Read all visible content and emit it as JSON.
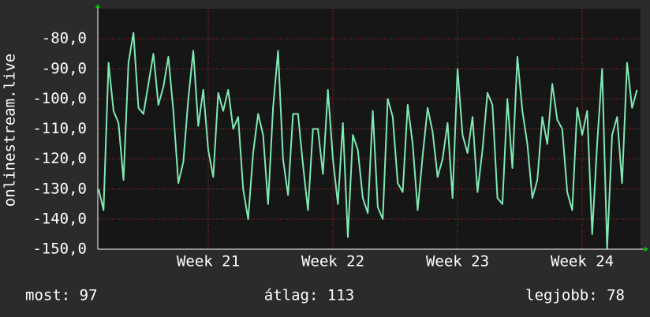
{
  "chart_data": {
    "type": "line",
    "ylabel": "onlinestream.live",
    "x": [
      20.12,
      20.16,
      20.2,
      20.24,
      20.28,
      20.32,
      20.36,
      20.4,
      20.44,
      20.48,
      20.52,
      20.56,
      20.6,
      20.64,
      20.68,
      20.72,
      20.76,
      20.8,
      20.84,
      20.88,
      20.92,
      20.96,
      21,
      21.04,
      21.08,
      21.12,
      21.16,
      21.2,
      21.24,
      21.28,
      21.32,
      21.36,
      21.4,
      21.44,
      21.48,
      21.52,
      21.56,
      21.6,
      21.64,
      21.68,
      21.72,
      21.76,
      21.8,
      21.84,
      21.88,
      21.92,
      21.96,
      22,
      22.04,
      22.08,
      22.12,
      22.16,
      22.2,
      22.24,
      22.28,
      22.32,
      22.36,
      22.4,
      22.44,
      22.48,
      22.52,
      22.56,
      22.6,
      22.64,
      22.68,
      22.72,
      22.76,
      22.8,
      22.84,
      22.88,
      22.92,
      22.96,
      23,
      23.04,
      23.08,
      23.12,
      23.16,
      23.2,
      23.24,
      23.28,
      23.32,
      23.36,
      23.4,
      23.44,
      23.48,
      23.52,
      23.56,
      23.6,
      23.64,
      23.68,
      23.72,
      23.76,
      23.8,
      23.84,
      23.88,
      23.92,
      23.96,
      24,
      24.04,
      24.08,
      24.12,
      24.16,
      24.2,
      24.24,
      24.28,
      24.32,
      24.36,
      24.4,
      24.44
    ],
    "series": [
      {
        "color": "#7fe8b4",
        "values": [
          -130,
          -137,
          -88,
          -104,
          -108,
          -127,
          -88,
          -78,
          -103,
          -105,
          -95,
          -85,
          -102,
          -96,
          -86,
          -104,
          -128,
          -121,
          -100,
          -84,
          -109,
          -97,
          -117,
          -126,
          -98,
          -104,
          -97,
          -110,
          -106,
          -130,
          -140,
          -118,
          -105,
          -112,
          -135,
          -103,
          -84,
          -120,
          -132,
          -105,
          -105,
          -122,
          -137,
          -110,
          -110,
          -125,
          -97,
          -120,
          -135,
          -108,
          -146,
          -112,
          -117,
          -133,
          -138,
          -104,
          -136,
          -140,
          -100,
          -106,
          -128,
          -131,
          -102,
          -115,
          -137,
          -119,
          -103,
          -111,
          -126,
          -120,
          -108,
          -133,
          -90,
          -112,
          -118,
          -106,
          -131,
          -117,
          -98,
          -102,
          -133,
          -135,
          -100,
          -123,
          -86,
          -104,
          -115,
          -133,
          -127,
          -106,
          -115,
          -95,
          -107,
          -110,
          -131,
          -137,
          -103,
          -112,
          -104,
          -145,
          -115,
          -90,
          -150,
          -112,
          -106,
          -128,
          -88,
          -103,
          -97
        ]
      }
    ],
    "xlim": [
      20.114,
      24.468
    ],
    "xticks": [
      {
        "value": 21,
        "label": "Week 21"
      },
      {
        "value": 22,
        "label": "Week 22"
      },
      {
        "value": 23,
        "label": "Week 23"
      },
      {
        "value": 24,
        "label": "Week 24"
      }
    ],
    "ylim": [
      -150,
      -70
    ],
    "yticks": [
      {
        "value": -150,
        "label": "-150,0"
      },
      {
        "value": -140,
        "label": "-140,0"
      },
      {
        "value": -130,
        "label": "-130,0"
      },
      {
        "value": -120,
        "label": "-120,0"
      },
      {
        "value": -110,
        "label": "-110,0"
      },
      {
        "value": -100,
        "label": "-100,0"
      },
      {
        "value": -90,
        "label": "-90,0"
      },
      {
        "value": -80,
        "label": "-80,0"
      }
    ],
    "grid": true,
    "stats": [
      "most: 97",
      "átlag: 113",
      "legjobb: 78"
    ]
  }
}
